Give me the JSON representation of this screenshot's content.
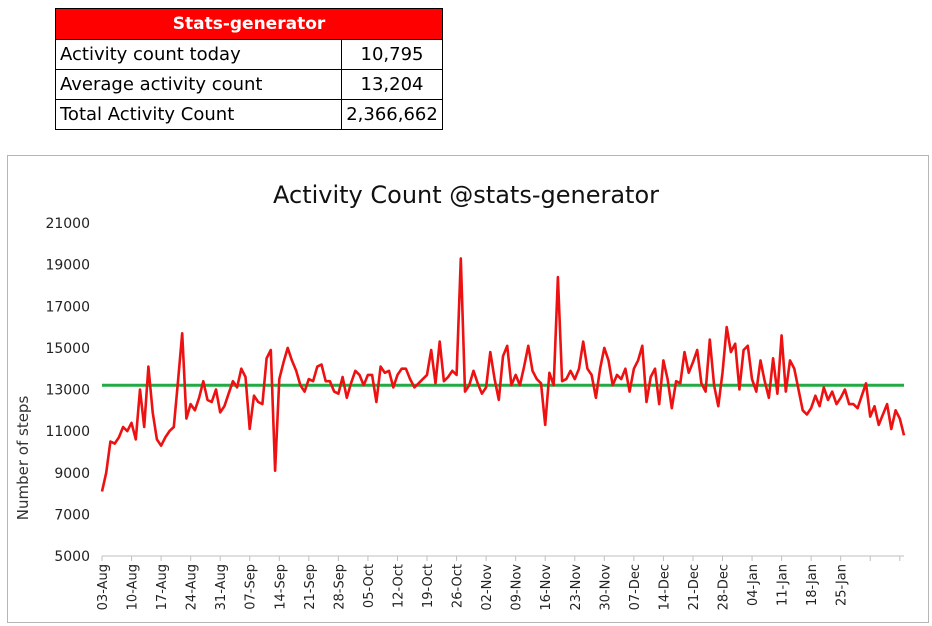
{
  "stats": {
    "header": "Stats-generator",
    "rows": [
      {
        "label": "Activity count today",
        "value": "10,795"
      },
      {
        "label": "Average activity count",
        "value": "13,204"
      },
      {
        "label": "Total Activity Count",
        "value": "2,366,662"
      }
    ]
  },
  "chart_data": {
    "type": "line",
    "title": "Activity Count @stats-generator",
    "xlabel": "",
    "ylabel": "Number of steps",
    "ylim": [
      5000,
      21000
    ],
    "yticks": [
      "5000",
      "7000",
      "9000",
      "11000",
      "13000",
      "15000",
      "17000",
      "19000",
      "21000"
    ],
    "xtick_labels": [
      "03-Aug",
      "10-Aug",
      "17-Aug",
      "24-Aug",
      "31-Aug",
      "07-Sep",
      "14-Sep",
      "21-Sep",
      "28-Sep",
      "05-Oct",
      "12-Oct",
      "19-Oct",
      "26-Oct",
      "02-Nov",
      "09-Nov",
      "16-Nov",
      "23-Nov",
      "30-Nov",
      "07-Dec",
      "14-Dec",
      "21-Dec",
      "28-Dec",
      "04-Jan",
      "11-Jan",
      "18-Jan",
      "25-Jan"
    ],
    "x_start": "03-Aug",
    "x_end": "31-Jan",
    "grid": false,
    "legend": "none",
    "colors": {
      "series": "#ee1111",
      "average": "#22aa44",
      "header": "#ff0000"
    },
    "series": [
      {
        "values": [
          8100,
          9000,
          10500,
          10400,
          10700,
          11200,
          11000,
          11400,
          10600,
          13000,
          11200,
          14100,
          11900,
          10600,
          10300,
          10700,
          11000,
          11200,
          13400,
          15700,
          11600,
          12300,
          12000,
          12600,
          13400,
          12500,
          12400,
          13000,
          11900,
          12200,
          12800,
          13400,
          13100,
          14000,
          13600,
          11100,
          12700,
          12400,
          12300,
          14500,
          14900,
          9100,
          13500,
          14300,
          15000,
          14400,
          13900,
          13200,
          12900,
          13500,
          13400,
          14100,
          14200,
          13400,
          13400,
          12900,
          12800,
          13600,
          12600,
          13300,
          13900,
          13700,
          13200,
          13700,
          13700,
          12400,
          14100,
          13800,
          13900,
          13100,
          13700,
          14000,
          14000,
          13500,
          13100,
          13300,
          13500,
          13700,
          14900,
          13300,
          15300,
          13400,
          13600,
          13900,
          13700,
          19300,
          12900,
          13200,
          13900,
          13300,
          12800,
          13100,
          14800,
          13500,
          12500,
          14600,
          15100,
          13200,
          13700,
          13200,
          14100,
          15100,
          13900,
          13500,
          13300,
          11300,
          13800,
          13200,
          18400,
          13400,
          13500,
          13900,
          13500,
          14000,
          15300,
          14000,
          13700,
          12600,
          14000,
          15000,
          14400,
          13200,
          13700,
          13500,
          14000,
          12900,
          14000,
          14400,
          15100,
          12400,
          13600,
          14000,
          12300,
          14400,
          13500,
          12100,
          13400,
          13300,
          14800,
          13800,
          14300,
          14900,
          13300,
          12900,
          15400,
          13200,
          12200,
          13800,
          16000,
          14800,
          15200,
          13000,
          14900,
          15100,
          13500,
          12900,
          14400,
          13400,
          12600,
          14500,
          12800,
          15600,
          12900,
          14400,
          14000,
          13000,
          12000,
          11800,
          12100,
          12700,
          12200,
          13100,
          12500,
          12900,
          12300,
          12600,
          13000,
          12300,
          12300,
          12100,
          12700,
          13300,
          11700,
          12200,
          11300,
          11800,
          12300,
          11100,
          12000,
          11600,
          10800
        ]
      }
    ],
    "average_line": 13204
  }
}
